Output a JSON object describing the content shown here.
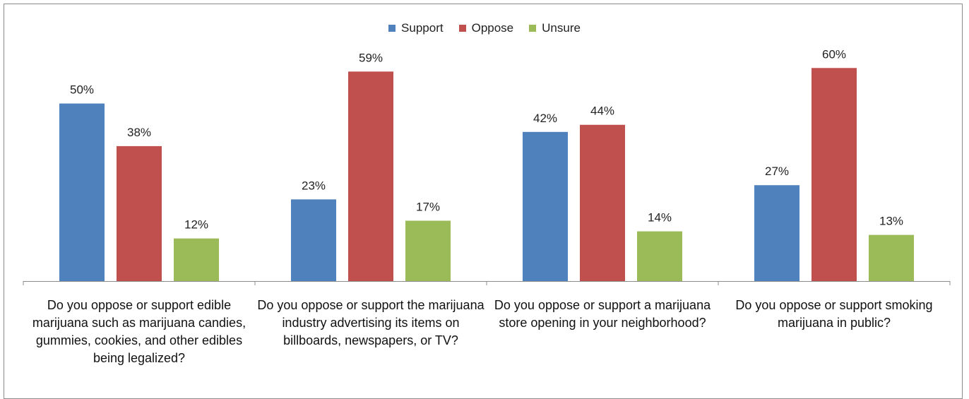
{
  "chart_data": {
    "type": "bar",
    "categories": [
      "Do you oppose or support edible marijuana such as marijuana candies, gummies, cookies, and other edibles being legalized?",
      "Do you oppose or support the marijuana industry advertising its items on billboards, newspapers, or TV?",
      "Do you oppose or support a marijuana store opening in your neighborhood?",
      "Do you oppose or support smoking marijuana in public?"
    ],
    "series": [
      {
        "name": "Support",
        "color": "#4F81BD",
        "values": [
          50,
          23,
          42,
          27
        ]
      },
      {
        "name": "Oppose",
        "color": "#C0504D",
        "values": [
          38,
          59,
          44,
          60
        ]
      },
      {
        "name": "Unsure",
        "color": "#9BBB59",
        "values": [
          12,
          17,
          14,
          13
        ]
      }
    ],
    "value_suffix": "%",
    "ylim": [
      0,
      70
    ],
    "legend_position": "top",
    "grid": false,
    "title": "",
    "xlabel": "",
    "ylabel": ""
  }
}
